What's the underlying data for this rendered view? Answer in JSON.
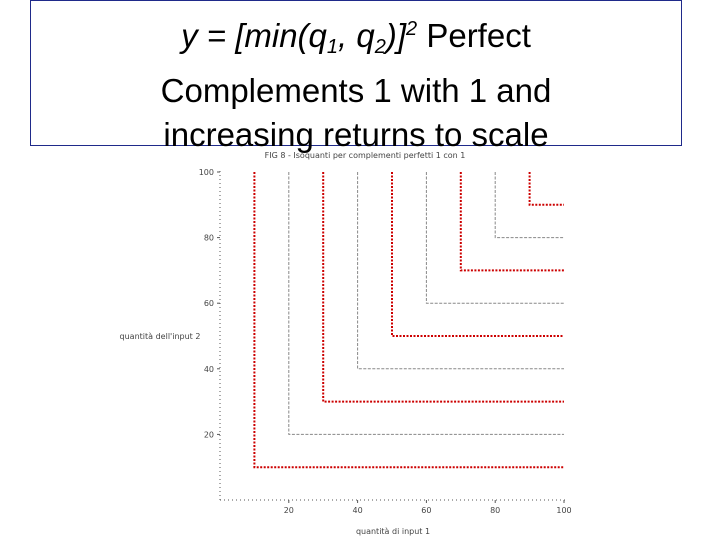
{
  "slide": {
    "title_math_prefix": "y = [min(q",
    "title_sub_1": "1",
    "title_sep": ", q",
    "title_sub_2": "2",
    "title_close": ")]",
    "title_sup": "2",
    "title_rest_1": " Perfect",
    "title_line_2": "Complements 1 with 1 and",
    "title_line_3": "increasing returns to scale"
  },
  "chart_data": {
    "type": "line",
    "title": "FIG 8 - Isoquanti per complementi perfetti 1 con 1",
    "xlabel": "quantità di input 1",
    "ylabel": "quantità dell'input 2",
    "xlim": [
      0,
      100
    ],
    "ylim": [
      0,
      100
    ],
    "x_ticks": [
      "20",
      "40",
      "60",
      "80",
      "100"
    ],
    "y_ticks": [
      "20",
      "40",
      "60",
      "80",
      "100"
    ],
    "grid": false,
    "series_style": "red dotted L-shaped isoquants, alternating with grey dashed ones",
    "isoquant_corners": [
      10,
      20,
      30,
      40,
      50,
      60,
      70,
      80,
      90
    ],
    "red_isoquant_corners": [
      10,
      30,
      50,
      70,
      90
    ],
    "grey_isoquant_corners": [
      20,
      40,
      60,
      80
    ],
    "colors": {
      "red": "#cc0000",
      "grey": "#888888",
      "axis": "#555555"
    }
  }
}
